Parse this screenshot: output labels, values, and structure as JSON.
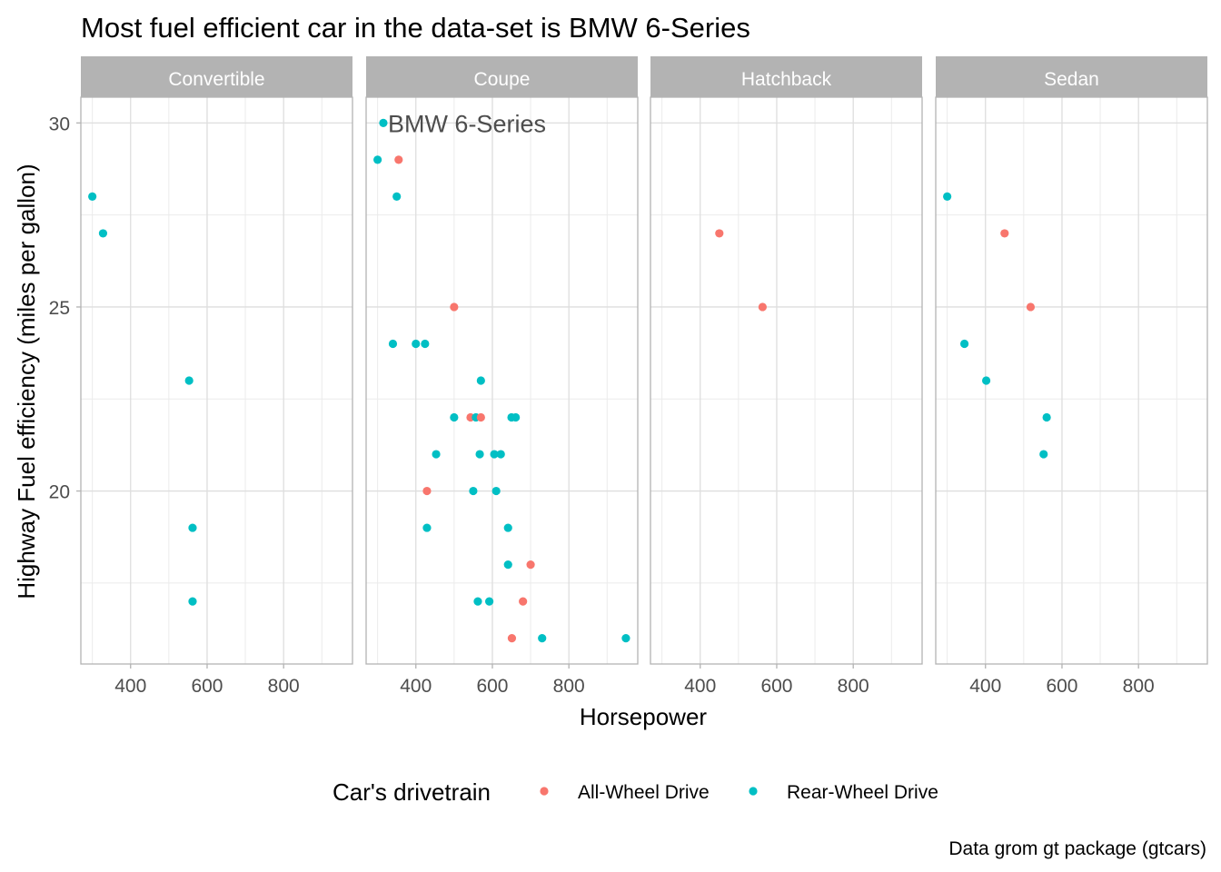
{
  "chart_data": {
    "type": "scatter",
    "title": "Most fuel efficient car in the data-set is BMW 6-Series",
    "xlabel": "Horsepower",
    "ylabel": "Highway Fuel efficiency (miles per gallon)",
    "caption": "Data grom gt package (gtcars)",
    "xlim": [
      270,
      980
    ],
    "ylim": [
      15.3,
      30.7
    ],
    "x_ticks": [
      400,
      600,
      800
    ],
    "x_tick_labels": [
      "400",
      "600",
      "800"
    ],
    "y_ticks": [
      20,
      25,
      30
    ],
    "y_tick_labels": [
      "20",
      "25",
      "30"
    ],
    "grid": true,
    "legend": {
      "title": "Car's drivetrain",
      "position": "bottom",
      "entries": [
        {
          "key": "awd",
          "label": "All-Wheel Drive",
          "color": "#F8766D"
        },
        {
          "key": "rwd",
          "label": "Rear-Wheel Drive",
          "color": "#00BFC4"
        }
      ]
    },
    "panels": [
      {
        "label": "Convertible",
        "points": [
          {
            "x": 300,
            "y": 28,
            "g": "rwd"
          },
          {
            "x": 328,
            "y": 27,
            "g": "rwd"
          },
          {
            "x": 553,
            "y": 23,
            "g": "rwd"
          },
          {
            "x": 562,
            "y": 19,
            "g": "rwd"
          },
          {
            "x": 562,
            "y": 17,
            "g": "rwd"
          }
        ]
      },
      {
        "label": "Coupe",
        "annotation": {
          "text": "BMW 6-Series",
          "x": 315,
          "y": 30
        },
        "points": [
          {
            "x": 315,
            "y": 30,
            "g": "rwd"
          },
          {
            "x": 300,
            "y": 29,
            "g": "rwd"
          },
          {
            "x": 355,
            "y": 29,
            "g": "awd"
          },
          {
            "x": 350,
            "y": 28,
            "g": "rwd"
          },
          {
            "x": 500,
            "y": 25,
            "g": "awd"
          },
          {
            "x": 340,
            "y": 24,
            "g": "rwd"
          },
          {
            "x": 400,
            "y": 24,
            "g": "rwd"
          },
          {
            "x": 424,
            "y": 24,
            "g": "rwd"
          },
          {
            "x": 570,
            "y": 23,
            "g": "rwd"
          },
          {
            "x": 500,
            "y": 22,
            "g": "rwd"
          },
          {
            "x": 543,
            "y": 22,
            "g": "awd"
          },
          {
            "x": 557,
            "y": 22,
            "g": "rwd"
          },
          {
            "x": 570,
            "y": 22,
            "g": "awd"
          },
          {
            "x": 650,
            "y": 22,
            "g": "rwd"
          },
          {
            "x": 661,
            "y": 22,
            "g": "rwd"
          },
          {
            "x": 453,
            "y": 21,
            "g": "rwd"
          },
          {
            "x": 567,
            "y": 21,
            "g": "rwd"
          },
          {
            "x": 605,
            "y": 21,
            "g": "rwd"
          },
          {
            "x": 622,
            "y": 21,
            "g": "rwd"
          },
          {
            "x": 429,
            "y": 20,
            "g": "awd"
          },
          {
            "x": 550,
            "y": 20,
            "g": "rwd"
          },
          {
            "x": 610,
            "y": 20,
            "g": "rwd"
          },
          {
            "x": 429,
            "y": 19,
            "g": "rwd"
          },
          {
            "x": 641,
            "y": 19,
            "g": "rwd"
          },
          {
            "x": 641,
            "y": 18,
            "g": "rwd"
          },
          {
            "x": 700,
            "y": 18,
            "g": "awd"
          },
          {
            "x": 562,
            "y": 17,
            "g": "rwd"
          },
          {
            "x": 592,
            "y": 17,
            "g": "rwd"
          },
          {
            "x": 680,
            "y": 17,
            "g": "awd"
          },
          {
            "x": 651,
            "y": 16,
            "g": "awd"
          },
          {
            "x": 730,
            "y": 16,
            "g": "rwd"
          },
          {
            "x": 949,
            "y": 16,
            "g": "rwd"
          }
        ]
      },
      {
        "label": "Hatchback",
        "points": [
          {
            "x": 450,
            "y": 27,
            "g": "awd"
          },
          {
            "x": 563,
            "y": 25,
            "g": "awd"
          }
        ]
      },
      {
        "label": "Sedan",
        "points": [
          {
            "x": 300,
            "y": 28,
            "g": "rwd"
          },
          {
            "x": 450,
            "y": 27,
            "g": "awd"
          },
          {
            "x": 518,
            "y": 25,
            "g": "awd"
          },
          {
            "x": 345,
            "y": 24,
            "g": "rwd"
          },
          {
            "x": 402,
            "y": 23,
            "g": "rwd"
          },
          {
            "x": 560,
            "y": 22,
            "g": "rwd"
          },
          {
            "x": 552,
            "y": 21,
            "g": "rwd"
          }
        ]
      }
    ]
  }
}
